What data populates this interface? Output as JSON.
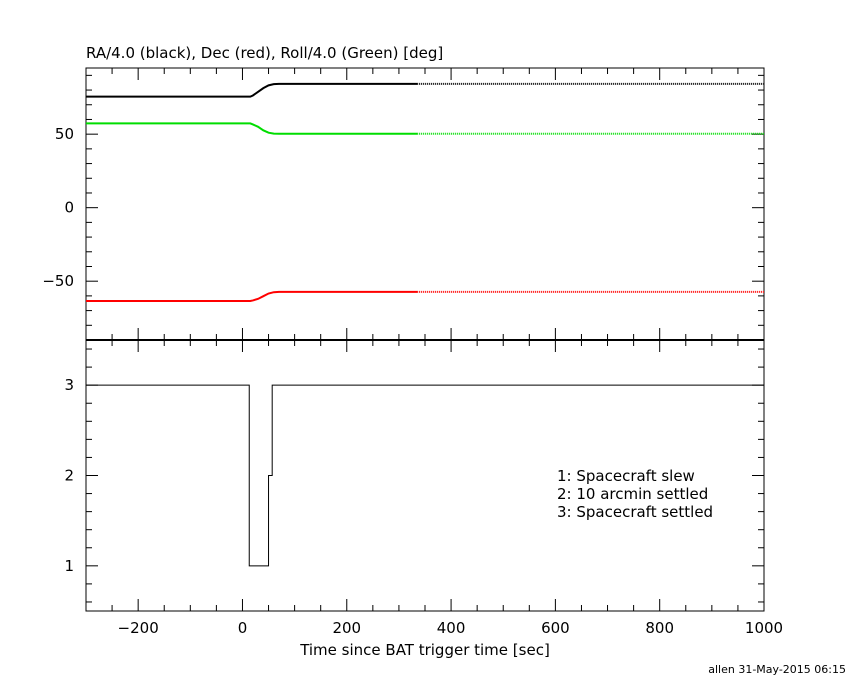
{
  "header": {
    "title": "RA/4.0 (black), Dec (red), Roll/4.0 (Green) [deg]"
  },
  "footer": {
    "credit": "allen 31-May-2015 06:15"
  },
  "legend_lines": [
    "1: Spacecraft slew",
    "2: 10 arcmin settled",
    "3: Spacecraft settled"
  ],
  "colors": {
    "ra": "#000000",
    "dec": "#ff0000",
    "roll": "#00dd00",
    "axis": "#000000"
  },
  "chart_data": [
    {
      "type": "line",
      "title": "RA/4.0 (black), Dec (red), Roll/4.0 (Green) [deg]",
      "xlim": [
        -300,
        1000
      ],
      "ylim": [
        -90,
        95
      ],
      "yticks_labeled": [
        -50,
        0,
        50
      ],
      "grid": false,
      "series": [
        {
          "name": "RA/4.0 (black)",
          "x": [
            -300,
            15,
            20,
            30,
            40,
            50,
            60,
            70,
            335
          ],
          "y": [
            75.5,
            75.5,
            76.3,
            78.8,
            81.3,
            83.2,
            84.0,
            84.2,
            84.2
          ],
          "dotted_x": [
            335,
            1000
          ],
          "dotted_y": [
            84.2,
            84.2
          ]
        },
        {
          "name": "Dec (red)",
          "x": [
            -300,
            15,
            20,
            30,
            40,
            50,
            60,
            70,
            335
          ],
          "y": [
            -63.5,
            -63.5,
            -63.1,
            -62.0,
            -60.2,
            -58.4,
            -57.5,
            -57.3,
            -57.3
          ],
          "dotted_x": [
            335,
            1000
          ],
          "dotted_y": [
            -57.3,
            -57.3
          ]
        },
        {
          "name": "Roll/4.0 (Green)",
          "x": [
            -300,
            15,
            20,
            30,
            40,
            50,
            60,
            70,
            335
          ],
          "y": [
            57.3,
            57.3,
            56.6,
            55.0,
            52.6,
            51.0,
            50.4,
            50.3,
            50.3
          ],
          "dotted_x": [
            335,
            1000
          ],
          "dotted_y": [
            50.3,
            50.3
          ]
        }
      ]
    },
    {
      "type": "line",
      "step": true,
      "xlabel": "Time since BAT trigger time [sec]",
      "xlim": [
        -300,
        1000
      ],
      "ylim": [
        0.5,
        3.5
      ],
      "xticks_labeled": [
        -200,
        0,
        200,
        400,
        600,
        800,
        1000
      ],
      "yticks_labeled": [
        1,
        2,
        3
      ],
      "grid": false,
      "series": [
        {
          "x": [
            -300,
            13,
            13,
            50,
            50,
            57,
            57,
            1000
          ],
          "y": [
            3,
            3,
            1,
            1,
            2,
            2,
            3,
            3
          ]
        }
      ],
      "annotations": [
        "1: Spacecraft slew",
        "2: 10 arcmin settled",
        "3: Spacecraft settled"
      ]
    }
  ]
}
